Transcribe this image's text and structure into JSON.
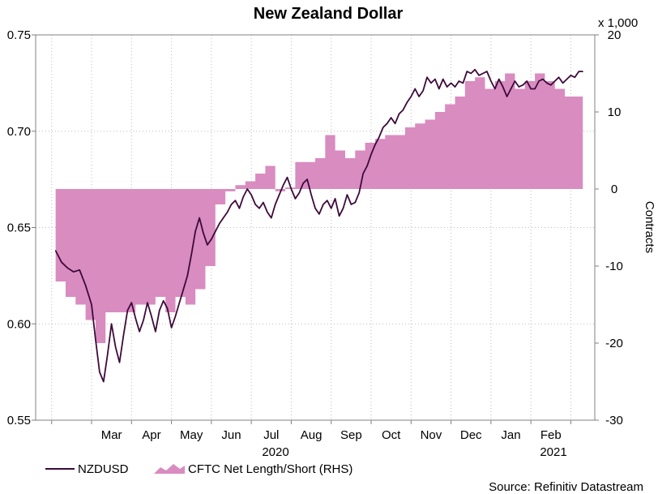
{
  "chart_data": {
    "type": "line",
    "title": "New Zealand Dollar",
    "source": "Source: Refinitiv Datastream",
    "left_axis": {
      "label": "",
      "ylim": [
        0.55,
        0.75
      ],
      "ticks": [
        "0.55",
        "0.60",
        "0.65",
        "0.70",
        "0.75"
      ]
    },
    "right_axis": {
      "label": "Contracts",
      "multiplier": "x 1,000",
      "ylim": [
        -30,
        20
      ],
      "ticks": [
        "-30",
        "-20",
        "-10",
        "0",
        "10",
        "20"
      ]
    },
    "x_axis": {
      "months": [
        "Mar",
        "Apr",
        "May",
        "Jun",
        "Jul",
        "Aug",
        "Sep",
        "Oct",
        "Nov",
        "Dec",
        "Jan",
        "Feb"
      ],
      "years": [
        "2020",
        "2021"
      ]
    },
    "legend": [
      {
        "name": "NZDUSD",
        "style": "line",
        "color": "#3d0a3a"
      },
      {
        "name": "CFTC Net Length/Short (RHS)",
        "style": "area",
        "color": "#d98cc0"
      }
    ],
    "series": [
      {
        "name": "NZDUSD",
        "axis": "left",
        "x": [
          2.1,
          2.25,
          2.4,
          2.55,
          2.7,
          2.85,
          3.0,
          3.1,
          3.2,
          3.3,
          3.4,
          3.5,
          3.6,
          3.7,
          3.8,
          3.9,
          4.0,
          4.1,
          4.2,
          4.3,
          4.4,
          4.5,
          4.6,
          4.7,
          4.8,
          4.9,
          5.0,
          5.1,
          5.2,
          5.3,
          5.4,
          5.5,
          5.6,
          5.7,
          5.8,
          5.9,
          6.0,
          6.1,
          6.2,
          6.3,
          6.4,
          6.5,
          6.6,
          6.7,
          6.8,
          6.9,
          7.0,
          7.1,
          7.2,
          7.3,
          7.4,
          7.5,
          7.6,
          7.7,
          7.8,
          7.9,
          8.0,
          8.1,
          8.2,
          8.3,
          8.4,
          8.5,
          8.6,
          8.7,
          8.8,
          8.9,
          9.0,
          9.1,
          9.2,
          9.3,
          9.4,
          9.5,
          9.6,
          9.7,
          9.8,
          9.9,
          10.0,
          10.1,
          10.2,
          10.3,
          10.4,
          10.5,
          10.6,
          10.7,
          10.8,
          10.9,
          11.0,
          11.1,
          11.2,
          11.3,
          11.4,
          11.5,
          11.6,
          11.7,
          11.8,
          11.9,
          12.0,
          12.1,
          12.2,
          12.3,
          12.4,
          12.5,
          12.6,
          12.7,
          12.8,
          12.9,
          13.0,
          13.1,
          13.2,
          13.3,
          13.4,
          13.5,
          13.6,
          13.7,
          13.8,
          13.9,
          14.0,
          14.1,
          14.2,
          14.3,
          14.4,
          14.5,
          14.6,
          14.7,
          14.8,
          14.9,
          15.0,
          15.1,
          15.2,
          15.3
        ],
        "values": [
          0.638,
          0.632,
          0.629,
          0.627,
          0.628,
          0.62,
          0.61,
          0.592,
          0.575,
          0.57,
          0.584,
          0.6,
          0.588,
          0.58,
          0.594,
          0.607,
          0.611,
          0.603,
          0.596,
          0.602,
          0.611,
          0.604,
          0.596,
          0.607,
          0.612,
          0.608,
          0.598,
          0.604,
          0.611,
          0.618,
          0.625,
          0.636,
          0.648,
          0.655,
          0.647,
          0.641,
          0.644,
          0.648,
          0.652,
          0.655,
          0.658,
          0.662,
          0.664,
          0.66,
          0.666,
          0.67,
          0.667,
          0.662,
          0.66,
          0.663,
          0.658,
          0.655,
          0.662,
          0.667,
          0.672,
          0.676,
          0.67,
          0.665,
          0.668,
          0.673,
          0.675,
          0.667,
          0.66,
          0.657,
          0.662,
          0.664,
          0.66,
          0.665,
          0.656,
          0.66,
          0.667,
          0.662,
          0.663,
          0.668,
          0.678,
          0.682,
          0.688,
          0.693,
          0.697,
          0.702,
          0.704,
          0.707,
          0.704,
          0.709,
          0.711,
          0.715,
          0.718,
          0.722,
          0.718,
          0.721,
          0.728,
          0.725,
          0.727,
          0.722,
          0.727,
          0.723,
          0.725,
          0.723,
          0.726,
          0.725,
          0.731,
          0.73,
          0.732,
          0.729,
          0.73,
          0.731,
          0.726,
          0.722,
          0.727,
          0.723,
          0.718,
          0.722,
          0.726,
          0.723,
          0.724,
          0.726,
          0.722,
          0.722,
          0.726,
          0.727,
          0.725,
          0.724,
          0.726,
          0.728,
          0.725,
          0.727,
          0.729,
          0.728,
          0.731,
          0.731
        ]
      },
      {
        "name": "CFTC Net Length/Short (RHS)",
        "axis": "right",
        "x": [
          2.1,
          2.35,
          2.6,
          2.85,
          3.1,
          3.35,
          3.6,
          3.85,
          4.1,
          4.35,
          4.6,
          4.85,
          5.1,
          5.35,
          5.6,
          5.85,
          6.1,
          6.35,
          6.6,
          6.85,
          7.1,
          7.35,
          7.6,
          7.85,
          8.1,
          8.35,
          8.6,
          8.85,
          9.1,
          9.35,
          9.6,
          9.85,
          10.1,
          10.35,
          10.6,
          10.85,
          11.1,
          11.35,
          11.6,
          11.85,
          12.1,
          12.35,
          12.6,
          12.85,
          13.1,
          13.35,
          13.6,
          13.85,
          14.1,
          14.35,
          14.6,
          14.85,
          15.1,
          15.3
        ],
        "values": [
          -12,
          -14,
          -15,
          -17,
          -20,
          -16,
          -16,
          -16,
          -15,
          -15,
          -14,
          -16,
          -14,
          -15,
          -13,
          -10,
          -2,
          -0.3,
          0.5,
          1,
          2,
          3,
          -0.3,
          0.2,
          3.5,
          3.5,
          4,
          7,
          5,
          4,
          5,
          6,
          6.5,
          7,
          7,
          8,
          8.5,
          9,
          10,
          11,
          12,
          14,
          14.5,
          13,
          14,
          15,
          13,
          14,
          15,
          14,
          13,
          12,
          12,
          14
        ]
      }
    ]
  }
}
